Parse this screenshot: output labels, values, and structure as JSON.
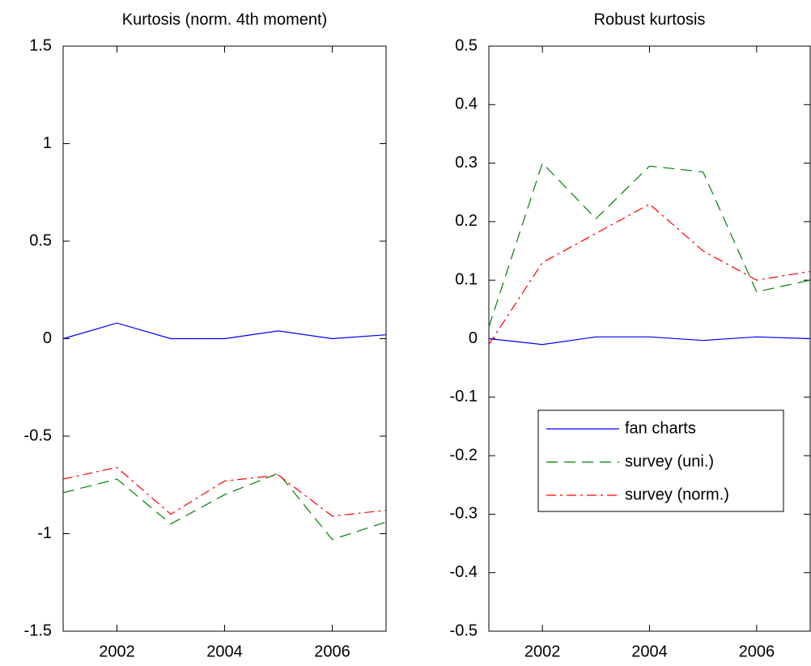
{
  "chart_data": [
    {
      "type": "line",
      "title": "Kurtosis (norm. 4th moment)",
      "x": [
        2001,
        2002,
        2003,
        2004,
        2005,
        2006,
        2007
      ],
      "series": [
        {
          "color": "#0000ff",
          "dash": "solid",
          "values": [
            0,
            0.08,
            0,
            0,
            0.04,
            0,
            0.02
          ]
        },
        {
          "color": "#008000",
          "dash": "dashed",
          "values": [
            -0.79,
            -0.72,
            -0.95,
            -0.8,
            -0.69,
            -1.03,
            -0.94
          ]
        },
        {
          "color": "#ff0000",
          "dash": "dashdot",
          "values": [
            -0.72,
            -0.66,
            -0.9,
            -0.73,
            -0.7,
            -0.91,
            -0.88
          ]
        }
      ],
      "xlim": [
        2001,
        2007
      ],
      "xticks": [
        2002,
        2004,
        2006
      ],
      "ylim": [
        -1.5,
        1.5
      ],
      "yticks": [
        -1.5,
        -1,
        -0.5,
        0,
        0.5,
        1,
        1.5
      ]
    },
    {
      "type": "line",
      "title": "Robust kurtosis",
      "x": [
        2001,
        2002,
        2003,
        2004,
        2005,
        2006,
        2007
      ],
      "series": [
        {
          "name": "fan charts",
          "color": "#0000ff",
          "dash": "solid",
          "values": [
            0,
            -0.01,
            0.003,
            0.003,
            -0.003,
            0.003,
            0
          ]
        },
        {
          "name": "survey (uni.)",
          "color": "#008000",
          "dash": "dashed",
          "values": [
            0.02,
            0.3,
            0.205,
            0.295,
            0.285,
            0.08,
            0.1
          ]
        },
        {
          "name": "survey (norm.)",
          "color": "#ff0000",
          "dash": "dashdot",
          "values": [
            -0.01,
            0.13,
            0.18,
            0.23,
            0.15,
            0.1,
            0.115
          ]
        }
      ],
      "xlim": [
        2001,
        2007
      ],
      "xticks": [
        2002,
        2004,
        2006
      ],
      "ylim": [
        -0.5,
        0.5
      ],
      "yticks": [
        -0.5,
        -0.4,
        -0.3,
        -0.2,
        -0.1,
        0,
        0.1,
        0.2,
        0.3,
        0.4,
        0.5
      ],
      "legend": "center"
    }
  ]
}
